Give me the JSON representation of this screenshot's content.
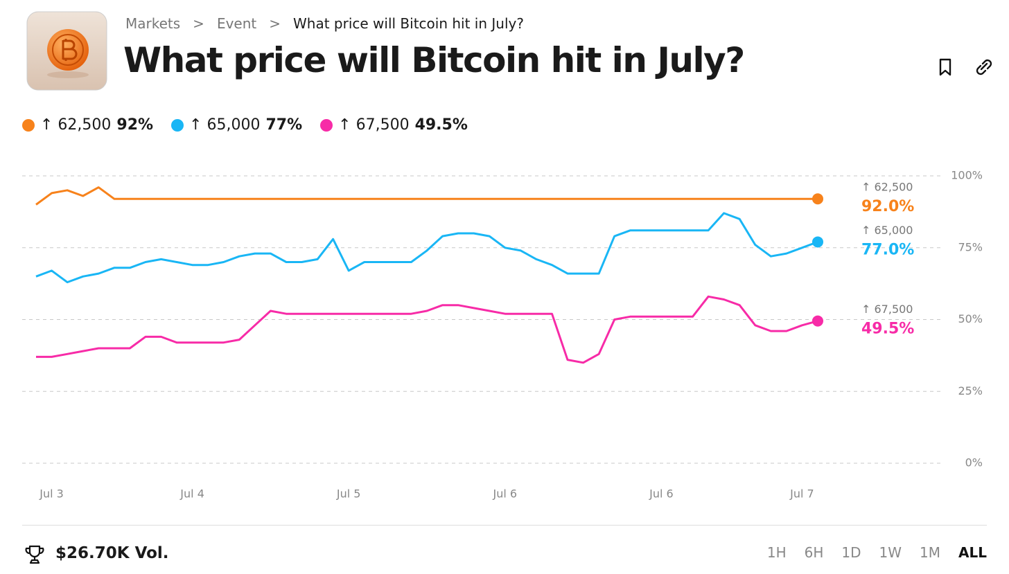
{
  "breadcrumb": [
    "Markets",
    "Event",
    "What price will Bitcoin hit in July?"
  ],
  "chart_data": {
    "type": "line",
    "title": "What price will Bitcoin hit in July?",
    "categories": [
      null,
      "Jul 3",
      null,
      null,
      null,
      null,
      null,
      null,
      null,
      null,
      "Jul 4",
      null,
      null,
      null,
      null,
      null,
      null,
      null,
      null,
      null,
      "Jul 5",
      null,
      null,
      null,
      null,
      null,
      null,
      null,
      null,
      null,
      "Jul 6",
      null,
      null,
      null,
      null,
      null,
      null,
      null,
      null,
      null,
      "Jul 6",
      null,
      null,
      null,
      null,
      null,
      null,
      null,
      null,
      "Jul 7",
      null
    ],
    "series": [
      {
        "name": "↑ 62,500",
        "legend_value": "92%",
        "end_label": "92.0%",
        "color": "#f7821b",
        "values": [
          90,
          94,
          95,
          93,
          96,
          92,
          92,
          92,
          92,
          92,
          92,
          92,
          92,
          92,
          92,
          92,
          92,
          92,
          92,
          92,
          92,
          92,
          92,
          92,
          92,
          92,
          92,
          92,
          92,
          92,
          92,
          92,
          92,
          92,
          92,
          92,
          92,
          92,
          92,
          92,
          92,
          92,
          92,
          92,
          92,
          92,
          92,
          92,
          92,
          92,
          92
        ]
      },
      {
        "name": "↑ 65,000",
        "legend_value": "77%",
        "end_label": "77.0%",
        "color": "#19b6f5",
        "values": [
          65,
          67,
          63,
          65,
          66,
          68,
          68,
          70,
          71,
          70,
          69,
          69,
          70,
          72,
          73,
          73,
          70,
          70,
          71,
          78,
          67,
          70,
          70,
          70,
          70,
          74,
          79,
          80,
          80,
          79,
          75,
          74,
          71,
          69,
          66,
          66,
          66,
          79,
          81,
          81,
          81,
          81,
          81,
          81,
          87,
          85,
          76,
          72,
          73,
          75,
          77
        ]
      },
      {
        "name": "↑ 67,500",
        "legend_value": "49.5%",
        "end_label": "49.5%",
        "color": "#f72ba7",
        "values": [
          37,
          37,
          38,
          39,
          40,
          40,
          40,
          44,
          44,
          42,
          42,
          42,
          42,
          43,
          48,
          53,
          52,
          52,
          52,
          52,
          52,
          52,
          52,
          52,
          52,
          53,
          55,
          55,
          54,
          53,
          52,
          52,
          52,
          52,
          36,
          35,
          38,
          50,
          51,
          51,
          51,
          51,
          51,
          58,
          57,
          55,
          48,
          46,
          46,
          48,
          49.5
        ]
      }
    ],
    "ylim": [
      0,
      100
    ],
    "yticks": [
      {
        "value": 0,
        "label": "0%"
      },
      {
        "value": 25,
        "label": "25%"
      },
      {
        "value": 50,
        "label": "50%"
      },
      {
        "value": 75,
        "label": "75%"
      },
      {
        "value": 100,
        "label": "100%"
      }
    ],
    "grid": true
  },
  "footer": {
    "volume": "$26.70K Vol.",
    "ranges": [
      "1H",
      "6H",
      "1D",
      "1W",
      "1M",
      "ALL"
    ],
    "active_range": "ALL"
  }
}
